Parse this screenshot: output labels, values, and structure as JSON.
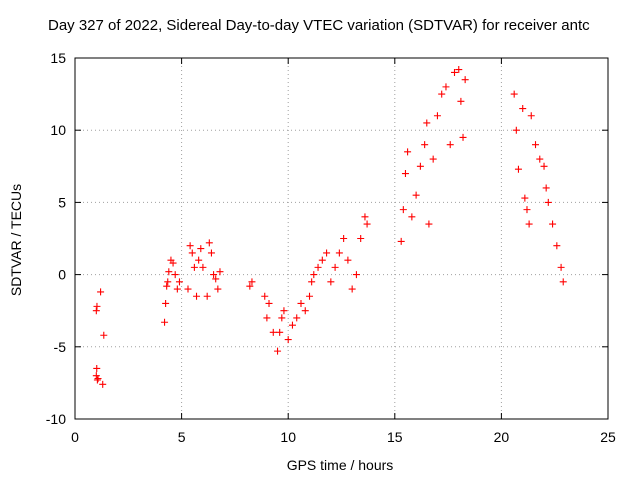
{
  "chart_data": {
    "type": "scatter",
    "title": "Day 327 of 2022, Sidereal Day-to-day VTEC variation (SDTVAR) for receiver antc",
    "xlabel": "GPS time / hours",
    "ylabel": "SDTVAR / TECUs",
    "xlim": [
      0,
      25
    ],
    "ylim": [
      -10,
      15
    ],
    "xticks": [
      "0",
      "5",
      "10",
      "15",
      "20",
      "25"
    ],
    "yticks": [
      "-10",
      "-5",
      "0",
      "5",
      "10",
      "15"
    ],
    "grid": true,
    "marker": "+",
    "color": "#ff0000",
    "series": [
      {
        "name": "SDTVAR",
        "x": [
          1.0,
          1.02,
          1.05,
          1.0,
          1.03,
          1.08,
          1.3,
          1.35,
          1.2,
          4.2,
          4.25,
          4.3,
          4.35,
          4.4,
          4.5,
          4.6,
          4.7,
          4.8,
          4.9,
          5.3,
          5.4,
          5.5,
          5.6,
          5.7,
          5.8,
          5.9,
          6.0,
          6.2,
          6.3,
          6.4,
          6.5,
          6.6,
          6.7,
          6.8,
          8.2,
          8.3,
          8.9,
          9.0,
          9.1,
          9.3,
          9.5,
          9.6,
          9.7,
          9.8,
          10.0,
          10.2,
          10.4,
          10.6,
          10.8,
          11.0,
          11.1,
          11.2,
          11.4,
          11.6,
          11.8,
          12.0,
          12.2,
          12.4,
          12.6,
          12.8,
          13.0,
          13.2,
          13.4,
          13.6,
          13.7,
          15.3,
          15.4,
          15.5,
          15.6,
          15.8,
          16.0,
          16.2,
          16.4,
          16.5,
          16.6,
          16.8,
          17.0,
          17.2,
          17.4,
          17.6,
          17.8,
          18.0,
          18.1,
          18.2,
          18.3,
          20.6,
          20.7,
          20.8,
          21.0,
          21.1,
          21.2,
          21.3,
          21.4,
          21.6,
          21.8,
          22.0,
          22.1,
          22.2,
          22.4,
          22.6,
          22.8,
          22.9
        ],
        "y": [
          -2.5,
          -6.5,
          -7.3,
          -7.0,
          -2.2,
          -7.2,
          -7.6,
          -4.2,
          -1.2,
          -3.3,
          -2.0,
          -0.8,
          -0.5,
          0.2,
          1.0,
          0.8,
          0.0,
          -1.0,
          -0.5,
          -1.0,
          2.0,
          1.5,
          0.5,
          -1.5,
          1.0,
          1.8,
          0.5,
          -1.5,
          2.2,
          1.5,
          0.0,
          -0.3,
          -1.0,
          0.2,
          -0.8,
          -0.5,
          -1.5,
          -3.0,
          -2.0,
          -4.0,
          -5.3,
          -4.0,
          -3.0,
          -2.5,
          -4.5,
          -3.5,
          -3.0,
          -2.0,
          -2.5,
          -1.5,
          -0.5,
          0.0,
          0.5,
          1.0,
          1.5,
          -0.5,
          0.5,
          1.5,
          2.5,
          1.0,
          -1.0,
          0.0,
          2.5,
          4.0,
          3.5,
          2.3,
          4.5,
          7.0,
          8.5,
          4.0,
          5.5,
          7.5,
          9.0,
          10.5,
          3.5,
          8.0,
          11.0,
          12.5,
          13.0,
          9.0,
          14.0,
          14.2,
          12.0,
          9.5,
          13.5,
          12.5,
          10.0,
          7.3,
          11.5,
          5.3,
          4.5,
          3.5,
          11.0,
          9.0,
          8.0,
          7.5,
          6.0,
          5.0,
          3.5,
          2.0,
          0.5,
          -0.5
        ]
      }
    ]
  }
}
